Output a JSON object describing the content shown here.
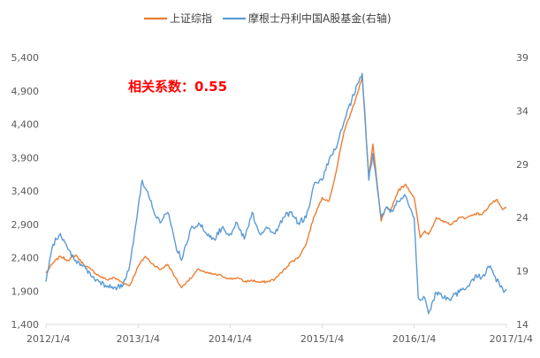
{
  "chart_data": {
    "type": "line",
    "annotation": "相关系数：0.55",
    "legend": {
      "placement": "top-center"
    },
    "grid": false,
    "x_ticks": [
      "2012/1/4",
      "2013/1/4",
      "2014/1/4",
      "2015/1/4",
      "2016/1/4",
      "2017/1/4"
    ],
    "y_left": {
      "ticks": [
        "1,400",
        "1,900",
        "2,400",
        "2,900",
        "3,400",
        "3,900",
        "4,400",
        "4,900",
        "5,400"
      ],
      "ylim": [
        1400,
        5400
      ]
    },
    "y_right": {
      "ticks": [
        "14",
        "19",
        "24",
        "29",
        "34",
        "39"
      ],
      "ylim": [
        14,
        39
      ]
    },
    "series": [
      {
        "name": "上证综指",
        "axis": "left",
        "color": "#ed7d31",
        "points": [
          [
            "2012-01-04",
            2170
          ],
          [
            "2012-02-01",
            2320
          ],
          [
            "2012-03-01",
            2420
          ],
          [
            "2012-04-01",
            2360
          ],
          [
            "2012-05-01",
            2440
          ],
          [
            "2012-06-01",
            2300
          ],
          [
            "2012-07-01",
            2220
          ],
          [
            "2012-08-01",
            2130
          ],
          [
            "2012-09-01",
            2070
          ],
          [
            "2012-10-01",
            2100
          ],
          [
            "2012-11-01",
            2030
          ],
          [
            "2012-12-01",
            1980
          ],
          [
            "2013-01-04",
            2270
          ],
          [
            "2013-02-01",
            2420
          ],
          [
            "2013-03-01",
            2310
          ],
          [
            "2013-04-01",
            2220
          ],
          [
            "2013-05-01",
            2300
          ],
          [
            "2013-06-01",
            2100
          ],
          [
            "2013-06-25",
            1950
          ],
          [
            "2013-07-15",
            2040
          ],
          [
            "2013-08-01",
            2090
          ],
          [
            "2013-09-01",
            2230
          ],
          [
            "2013-10-01",
            2170
          ],
          [
            "2013-11-01",
            2150
          ],
          [
            "2013-12-01",
            2130
          ],
          [
            "2014-01-04",
            2080
          ],
          [
            "2014-02-01",
            2100
          ],
          [
            "2014-03-01",
            2040
          ],
          [
            "2014-04-01",
            2060
          ],
          [
            "2014-05-01",
            2030
          ],
          [
            "2014-06-01",
            2040
          ],
          [
            "2014-07-01",
            2080
          ],
          [
            "2014-08-01",
            2200
          ],
          [
            "2014-09-01",
            2330
          ],
          [
            "2014-10-01",
            2400
          ],
          [
            "2014-11-01",
            2600
          ],
          [
            "2014-12-01",
            3000
          ],
          [
            "2015-01-04",
            3300
          ],
          [
            "2015-02-01",
            3250
          ],
          [
            "2015-03-01",
            3700
          ],
          [
            "2015-04-01",
            4300
          ],
          [
            "2015-05-01",
            4600
          ],
          [
            "2015-06-12",
            5100
          ],
          [
            "2015-07-08",
            3600
          ],
          [
            "2015-07-24",
            4100
          ],
          [
            "2015-08-26",
            2950
          ],
          [
            "2015-09-15",
            3150
          ],
          [
            "2015-10-01",
            3100
          ],
          [
            "2015-11-01",
            3400
          ],
          [
            "2015-12-01",
            3500
          ],
          [
            "2016-01-04",
            3300
          ],
          [
            "2016-01-28",
            2700
          ],
          [
            "2016-02-15",
            2800
          ],
          [
            "2016-03-01",
            2750
          ],
          [
            "2016-04-01",
            3000
          ],
          [
            "2016-05-01",
            2930
          ],
          [
            "2016-06-01",
            2900
          ],
          [
            "2016-07-01",
            3000
          ],
          [
            "2016-08-01",
            3000
          ],
          [
            "2016-09-01",
            3060
          ],
          [
            "2016-10-01",
            3050
          ],
          [
            "2016-11-01",
            3200
          ],
          [
            "2016-11-28",
            3270
          ],
          [
            "2016-12-01",
            3230
          ],
          [
            "2016-12-20",
            3120
          ],
          [
            "2017-01-04",
            3150
          ]
        ]
      },
      {
        "name": "摩根士丹利中国A股基金(右轴)",
        "axis": "right",
        "color": "#5b9bd5",
        "points": [
          [
            "2012-01-04",
            18
          ],
          [
            "2012-02-01",
            21.5
          ],
          [
            "2012-03-01",
            22.5
          ],
          [
            "2012-04-01",
            21
          ],
          [
            "2012-05-01",
            20
          ],
          [
            "2012-06-01",
            19.5
          ],
          [
            "2012-07-01",
            18.5
          ],
          [
            "2012-08-01",
            18
          ],
          [
            "2012-09-01",
            17.5
          ],
          [
            "2012-10-01",
            17.5
          ],
          [
            "2012-11-01",
            17.5
          ],
          [
            "2012-12-01",
            19.5
          ],
          [
            "2013-01-04",
            25
          ],
          [
            "2013-01-20",
            27.5
          ],
          [
            "2013-02-15",
            26
          ],
          [
            "2013-03-01",
            25
          ],
          [
            "2013-04-01",
            23.5
          ],
          [
            "2013-05-01",
            24.5
          ],
          [
            "2013-06-01",
            21.5
          ],
          [
            "2013-06-25",
            20
          ],
          [
            "2013-07-15",
            21.5
          ],
          [
            "2013-08-01",
            23
          ],
          [
            "2013-09-01",
            23.5
          ],
          [
            "2013-10-01",
            22.5
          ],
          [
            "2013-11-01",
            22
          ],
          [
            "2013-12-01",
            23
          ],
          [
            "2014-01-04",
            22.5
          ],
          [
            "2014-02-01",
            23.5
          ],
          [
            "2014-03-01",
            22
          ],
          [
            "2014-04-01",
            24.5
          ],
          [
            "2014-05-01",
            22.5
          ],
          [
            "2014-06-01",
            23
          ],
          [
            "2014-07-01",
            22.5
          ],
          [
            "2014-08-01",
            24
          ],
          [
            "2014-09-01",
            24.5
          ],
          [
            "2014-10-01",
            23.5
          ],
          [
            "2014-11-01",
            24
          ],
          [
            "2014-12-01",
            27
          ],
          [
            "2015-01-04",
            27.5
          ],
          [
            "2015-02-01",
            29.5
          ],
          [
            "2015-03-01",
            30.5
          ],
          [
            "2015-04-01",
            33
          ],
          [
            "2015-05-01",
            35
          ],
          [
            "2015-06-12",
            37.5
          ],
          [
            "2015-07-08",
            27.5
          ],
          [
            "2015-07-24",
            30
          ],
          [
            "2015-08-26",
            24
          ],
          [
            "2015-09-15",
            25
          ],
          [
            "2015-10-01",
            24.5
          ],
          [
            "2015-11-01",
            25.5
          ],
          [
            "2015-12-01",
            26
          ],
          [
            "2016-01-04",
            24
          ],
          [
            "2016-01-20",
            16.5
          ],
          [
            "2016-02-15",
            16.5
          ],
          [
            "2016-03-01",
            15
          ],
          [
            "2016-04-01",
            17
          ],
          [
            "2016-05-01",
            16.5
          ],
          [
            "2016-06-01",
            16.5
          ],
          [
            "2016-07-01",
            17
          ],
          [
            "2016-08-01",
            17.5
          ],
          [
            "2016-09-01",
            18.5
          ],
          [
            "2016-10-01",
            18.5
          ],
          [
            "2016-11-01",
            19.5
          ],
          [
            "2016-11-20",
            18.5
          ],
          [
            "2016-12-10",
            17.5
          ],
          [
            "2016-12-25",
            17
          ],
          [
            "2017-01-04",
            17.3
          ]
        ]
      }
    ]
  }
}
